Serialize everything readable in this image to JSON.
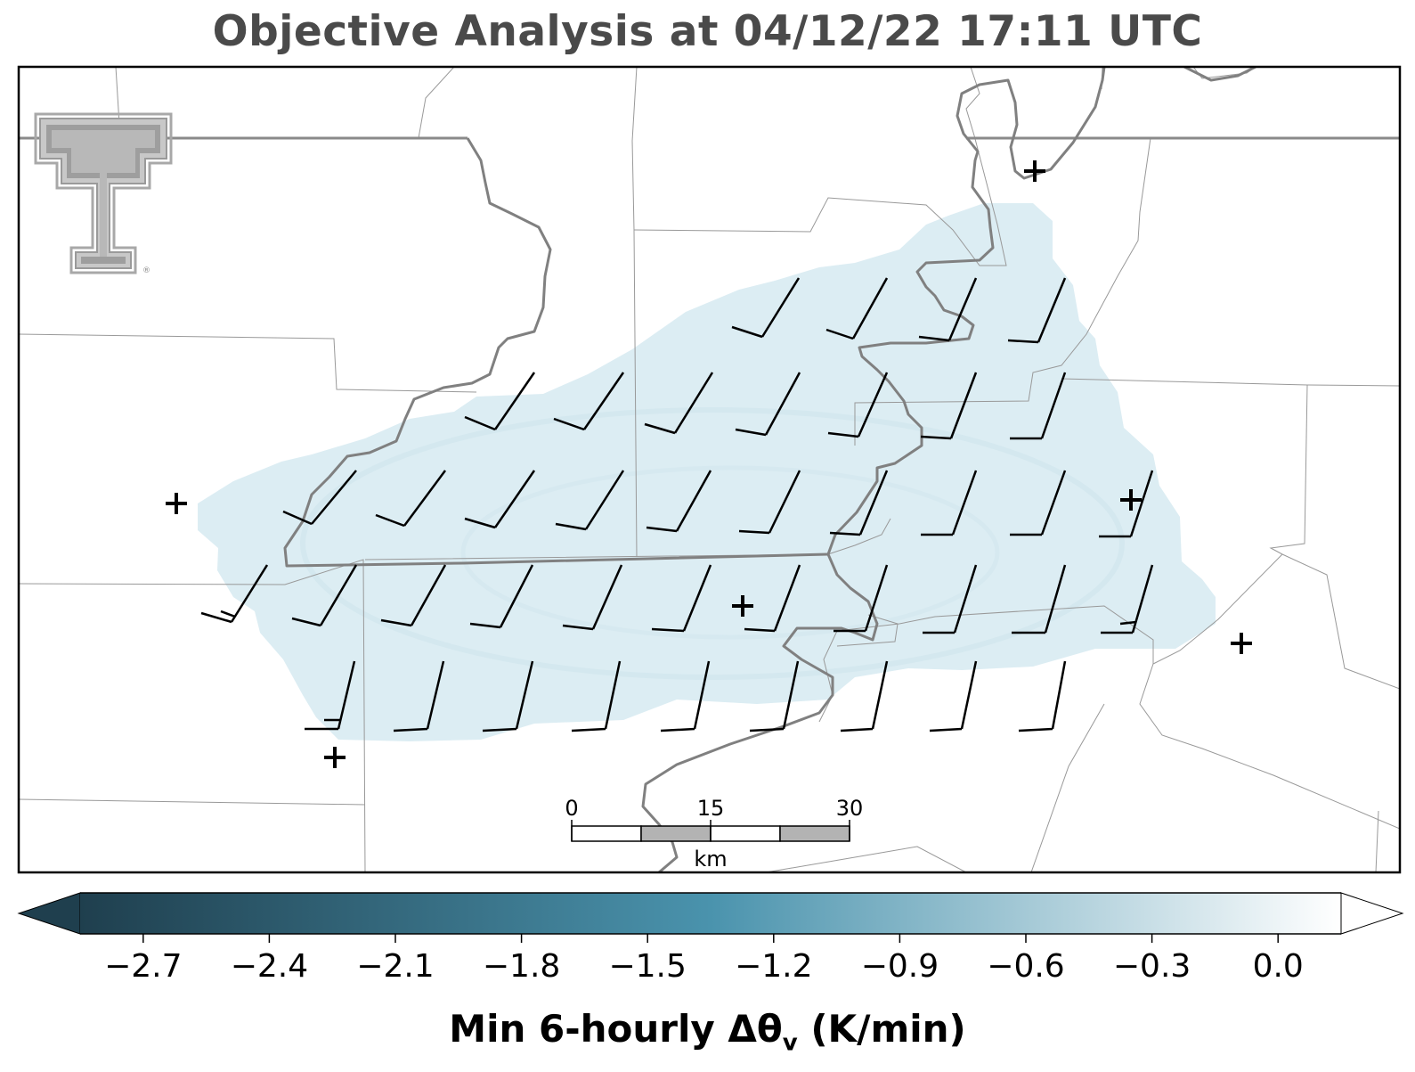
{
  "title": "Objective Analysis at 04/12/22 17:11 UTC",
  "colorbar": {
    "label_main": "Min 6-hourly Δθ",
    "label_sub": "v",
    "label_unit": " (K/min)",
    "ticks": [
      "−2.7",
      "−2.4",
      "−2.1",
      "−1.8",
      "−1.5",
      "−1.2",
      "−0.9",
      "−0.6",
      "−0.3",
      "0.0"
    ],
    "tick_values": [
      -2.7,
      -2.4,
      -2.1,
      -1.8,
      -1.5,
      -1.2,
      -0.9,
      -0.6,
      -0.3,
      0.0
    ],
    "vmin": -2.85,
    "vmax": 0.15,
    "extend": "both",
    "color_low": "#1f3f4e",
    "color_mid": "#4a93ad",
    "color_high": "#ffffff"
  },
  "scale_bar": {
    "labels": [
      "0",
      "15",
      "30"
    ],
    "unit": "km"
  },
  "logo": {
    "name": "texas-tech-double-t"
  },
  "field": {
    "fill_color": "#dcedf3",
    "approx_value": -0.3
  },
  "colors": {
    "frame": "#000000",
    "county_lines": "#999999",
    "river": "#808080",
    "title": "#4a4a4a",
    "wind_barbs": "#000000",
    "station_markers": "#000000"
  },
  "wind_barbs": {
    "type": "barbs",
    "units": "short barbs, wind from southwest/south"
  }
}
